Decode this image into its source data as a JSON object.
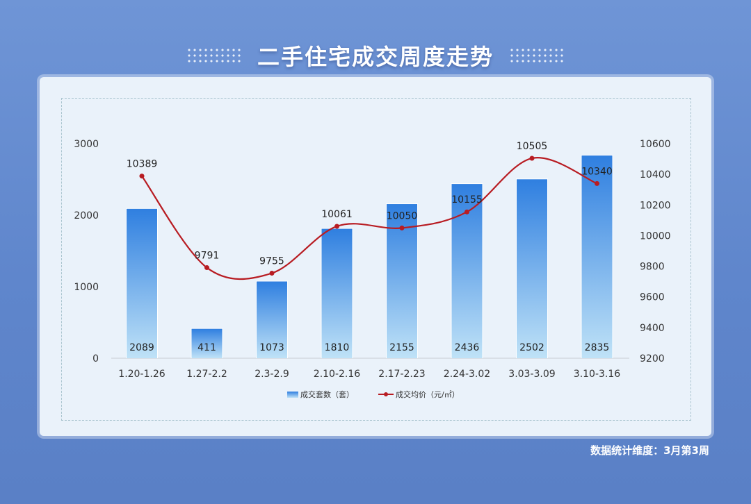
{
  "title": "二手住宅成交周度走势",
  "footnote": "数据统计维度：3月第3周",
  "colors": {
    "bar_top": "#2f7fe0",
    "bar_bottom": "#bfe2f7",
    "line": "#b81c22",
    "axis_text": "#333333"
  },
  "chart_data": {
    "type": "bar",
    "categories": [
      "1.20-1.26",
      "1.27-2.2",
      "2.3-2.9",
      "2.10-2.16",
      "2.17-2.23",
      "2.24-3.02",
      "3.03-3.09",
      "3.10-3.16"
    ],
    "series": [
      {
        "name": "成交套数（套）",
        "type": "bar",
        "axis": "left",
        "values": [
          2089,
          411,
          1073,
          1810,
          2155,
          2436,
          2502,
          2835
        ]
      },
      {
        "name": "成交均价（元/㎡）",
        "type": "line",
        "axis": "right",
        "values": [
          10389,
          9791,
          9755,
          10061,
          10050,
          10155,
          10505,
          10340
        ]
      }
    ],
    "y_left": {
      "min": 0,
      "max": 3000,
      "ticks": [
        0,
        1000,
        2000,
        3000
      ]
    },
    "y_right": {
      "min": 9200,
      "max": 10600,
      "ticks": [
        9200,
        9400,
        9600,
        9800,
        10000,
        10200,
        10400,
        10600
      ]
    },
    "grid": false,
    "legend": "bottom"
  }
}
